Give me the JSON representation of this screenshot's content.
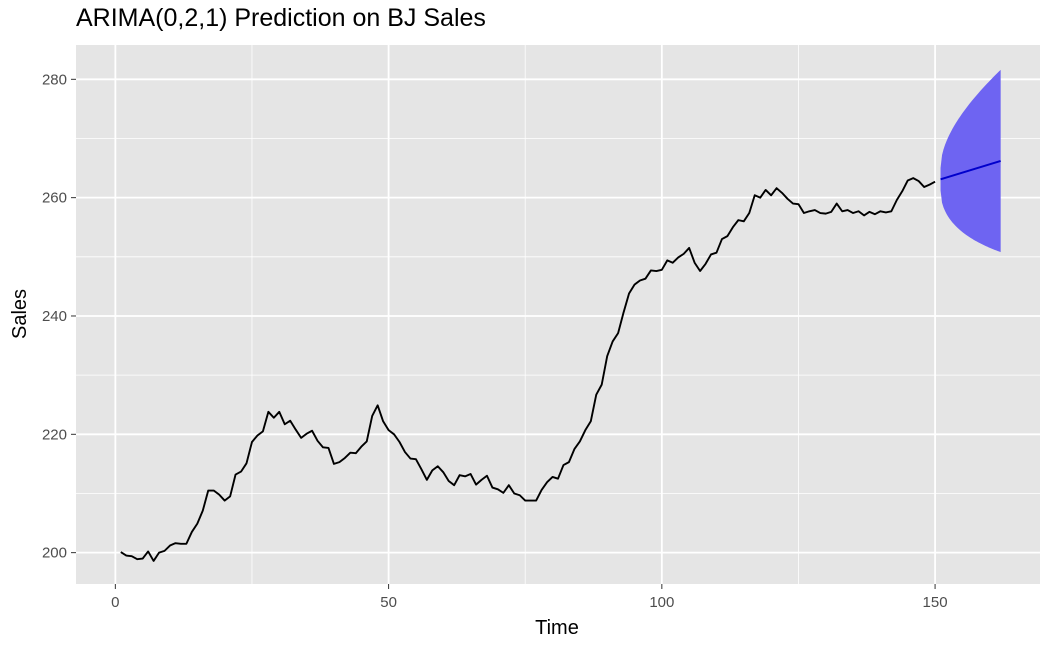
{
  "chart_data": {
    "type": "line",
    "title": "ARIMA(0,2,1) Prediction on BJ Sales",
    "xlabel": "Time",
    "ylabel": "Sales",
    "xlim": [
      -7.2,
      169.2
    ],
    "ylim": [
      194.7,
      285.8
    ],
    "x_ticks": [
      0,
      50,
      100,
      150
    ],
    "x_tick_labels": [
      "0",
      "50",
      "100",
      "150"
    ],
    "x_minor_ticks": [
      25,
      75,
      125
    ],
    "y_ticks": [
      200,
      220,
      240,
      260,
      280
    ],
    "y_tick_labels": [
      "200",
      "220",
      "240",
      "260",
      "280"
    ],
    "y_minor_ticks": [
      210,
      230,
      250,
      270
    ],
    "grid": true,
    "colors": {
      "panel": "#e5e5e5",
      "grid": "#ffffff",
      "observed": "#000000",
      "forecast": "#0000cc",
      "interval": "#6e64f2"
    },
    "series": [
      {
        "role": "observed",
        "x_start": 1,
        "values": [
          200.1,
          199.5,
          199.4,
          198.9,
          199.0,
          200.2,
          198.6,
          200.0,
          200.3,
          201.2,
          201.6,
          201.5,
          201.5,
          203.5,
          204.9,
          207.1,
          210.5,
          210.5,
          209.8,
          208.8,
          209.5,
          213.2,
          213.7,
          215.1,
          218.7,
          219.8,
          220.5,
          223.8,
          222.8,
          223.8,
          221.7,
          222.3,
          220.8,
          219.4,
          220.1,
          220.6,
          218.9,
          217.8,
          217.7,
          215.0,
          215.3,
          216.0,
          216.9,
          216.8,
          217.9,
          218.8,
          223.1,
          224.9,
          222.2,
          220.7,
          220.0,
          218.7,
          217.0,
          215.9,
          215.8,
          214.1,
          212.3,
          213.9,
          214.6,
          213.6,
          212.1,
          211.4,
          213.1,
          212.9,
          213.3,
          211.5,
          212.3,
          213.0,
          211.0,
          210.7,
          210.1,
          211.4,
          210.0,
          209.7,
          208.8,
          208.8,
          208.8,
          210.6,
          211.9,
          212.8,
          212.5,
          214.8,
          215.3,
          217.5,
          218.8,
          220.7,
          222.2,
          226.7,
          228.4,
          233.2,
          235.7,
          237.1,
          240.6,
          243.8,
          245.3,
          246.0,
          246.3,
          247.7,
          247.6,
          247.8,
          249.4,
          249.0,
          249.9,
          250.5,
          251.5,
          249.0,
          247.6,
          248.8,
          250.4,
          250.7,
          253.0,
          253.5,
          255.0,
          256.2,
          256.0,
          257.4,
          260.4,
          260.0,
          261.3,
          260.4,
          261.6,
          260.8,
          259.8,
          259.0,
          258.9,
          257.4,
          257.7,
          257.9,
          257.4,
          257.3,
          257.6,
          259.0,
          257.7,
          257.9,
          257.4,
          257.7,
          257.0,
          257.6,
          257.2,
          257.7,
          257.5,
          257.7,
          259.6,
          261.1,
          262.9,
          263.3,
          262.8,
          261.8,
          262.2,
          262.7
        ]
      },
      {
        "role": "forecast",
        "x": [
          151,
          162
        ],
        "values": [
          263.1,
          266.2
        ],
        "lower": [
          261.2,
          250.8
        ],
        "upper": [
          265.0,
          281.6
        ]
      }
    ]
  }
}
